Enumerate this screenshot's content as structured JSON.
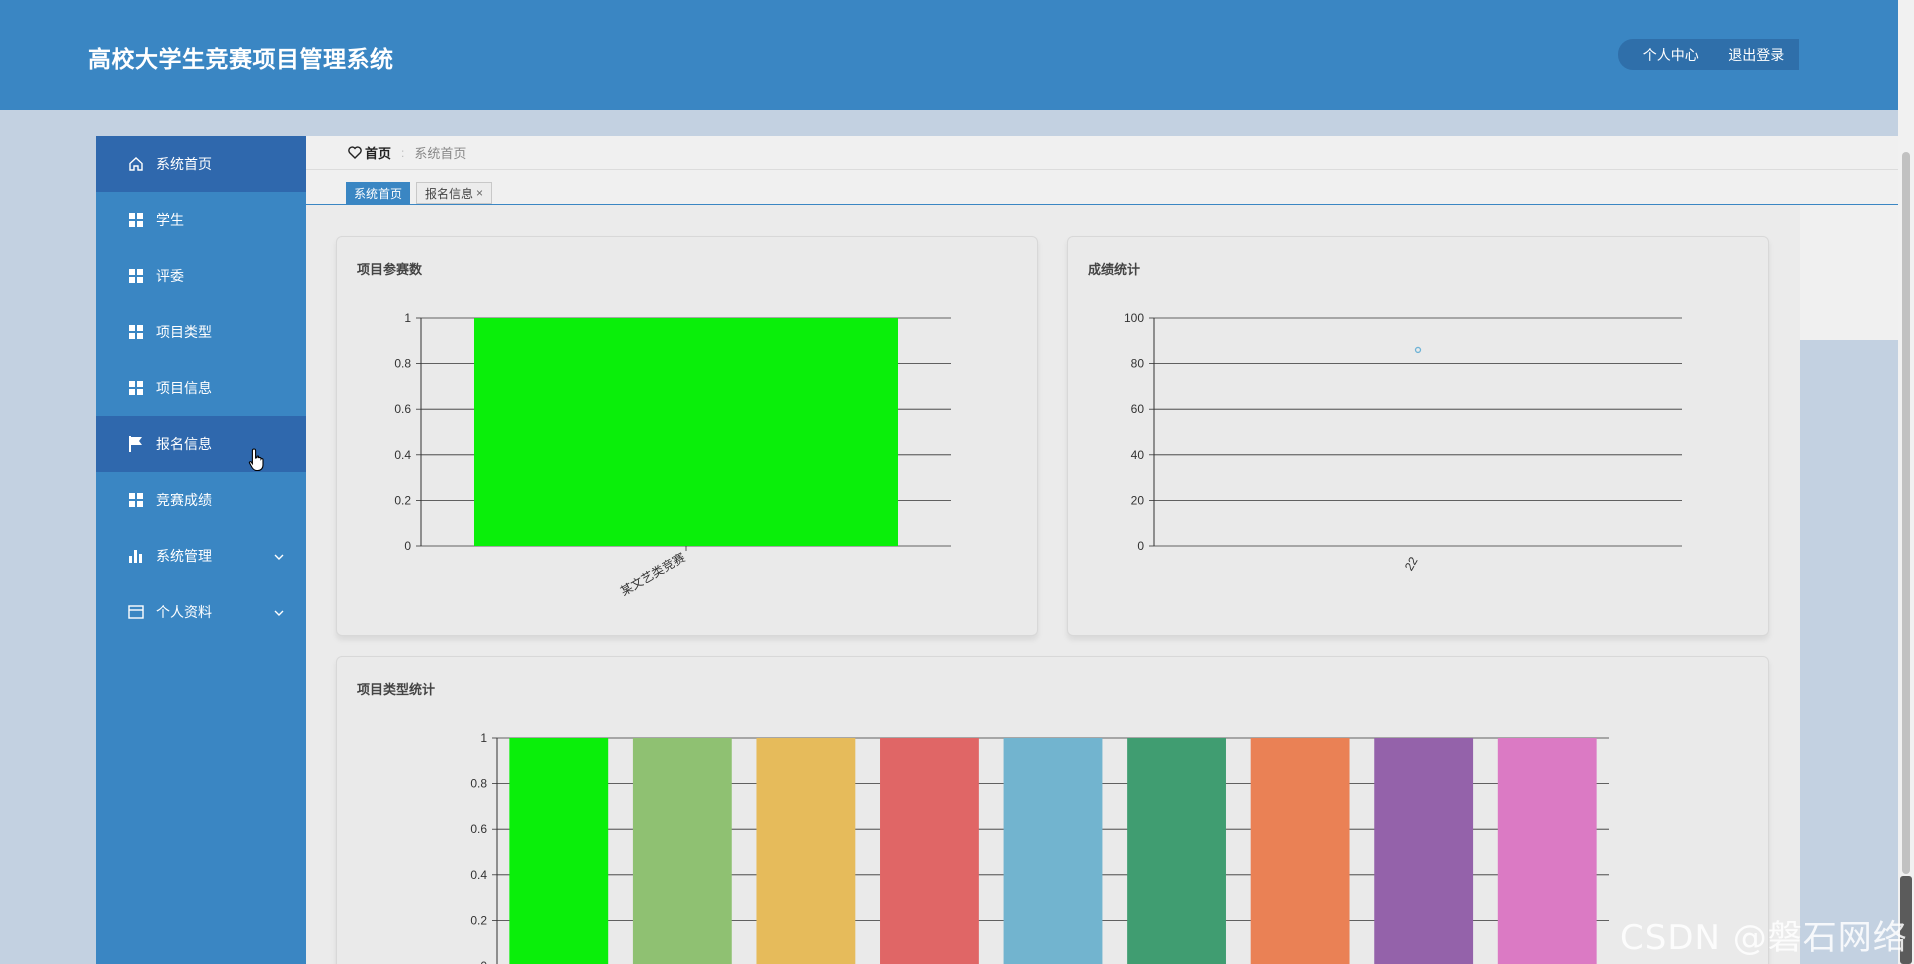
{
  "header": {
    "title": "高校大学生竞赛项目管理系统",
    "personal_center": "个人中心",
    "logout": "退出登录"
  },
  "sidebar": {
    "items": [
      {
        "label": "系统首页",
        "icon": "home-icon"
      },
      {
        "label": "学生",
        "icon": "grid-icon"
      },
      {
        "label": "评委",
        "icon": "grid-icon"
      },
      {
        "label": "项目类型",
        "icon": "grid-icon"
      },
      {
        "label": "项目信息",
        "icon": "grid-icon"
      },
      {
        "label": "报名信息",
        "icon": "flag-icon"
      },
      {
        "label": "竞赛成绩",
        "icon": "grid-icon"
      },
      {
        "label": "系统管理",
        "icon": "bar-chart-icon"
      },
      {
        "label": "个人资料",
        "icon": "card-icon"
      }
    ]
  },
  "breadcrumb": {
    "home": "首页",
    "separator": ":",
    "current": "系统首页"
  },
  "tabs": [
    {
      "label": "系统首页",
      "active": true
    },
    {
      "label": "报名信息",
      "active": false,
      "close": "×"
    }
  ],
  "cards": {
    "participants": {
      "title": "项目参赛数"
    },
    "scores": {
      "title": "成绩统计"
    },
    "types": {
      "title": "项目类型统计"
    }
  },
  "colors": {
    "primary": "#3a86c3",
    "active_nav": "#2f68ad",
    "bar_green": "#0aef0a"
  },
  "watermark": "CSDN @磐石网络",
  "chart_data": [
    {
      "type": "bar",
      "title": "项目参赛数",
      "categories": [
        "某文艺类竞赛"
      ],
      "values": [
        1
      ],
      "ylim": [
        0,
        1
      ],
      "yticks": [
        "0",
        "0.2",
        "0.4",
        "0.6",
        "0.8",
        "1"
      ],
      "colors": [
        "#0aef0a"
      ]
    },
    {
      "type": "scatter",
      "title": "成绩统计",
      "categories": [
        "22"
      ],
      "values": [
        86
      ],
      "ylim": [
        0,
        100
      ],
      "yticks": [
        "0",
        "20",
        "40",
        "60",
        "80",
        "100"
      ],
      "colors": [
        "#6fb3d6"
      ]
    },
    {
      "type": "bar",
      "title": "项目类型统计",
      "values": [
        1,
        1,
        1,
        1,
        1,
        1,
        1,
        1,
        1
      ],
      "ylim": [
        0,
        1
      ],
      "yticks": [
        "0",
        "0.2",
        "0.4",
        "0.6",
        "0.8",
        "1"
      ],
      "colors": [
        "#0aef0a",
        "#8fc172",
        "#e6bb5b",
        "#e06666",
        "#72b4cf",
        "#409d71",
        "#ea8155",
        "#9462aa",
        "#db7ac4"
      ]
    }
  ]
}
